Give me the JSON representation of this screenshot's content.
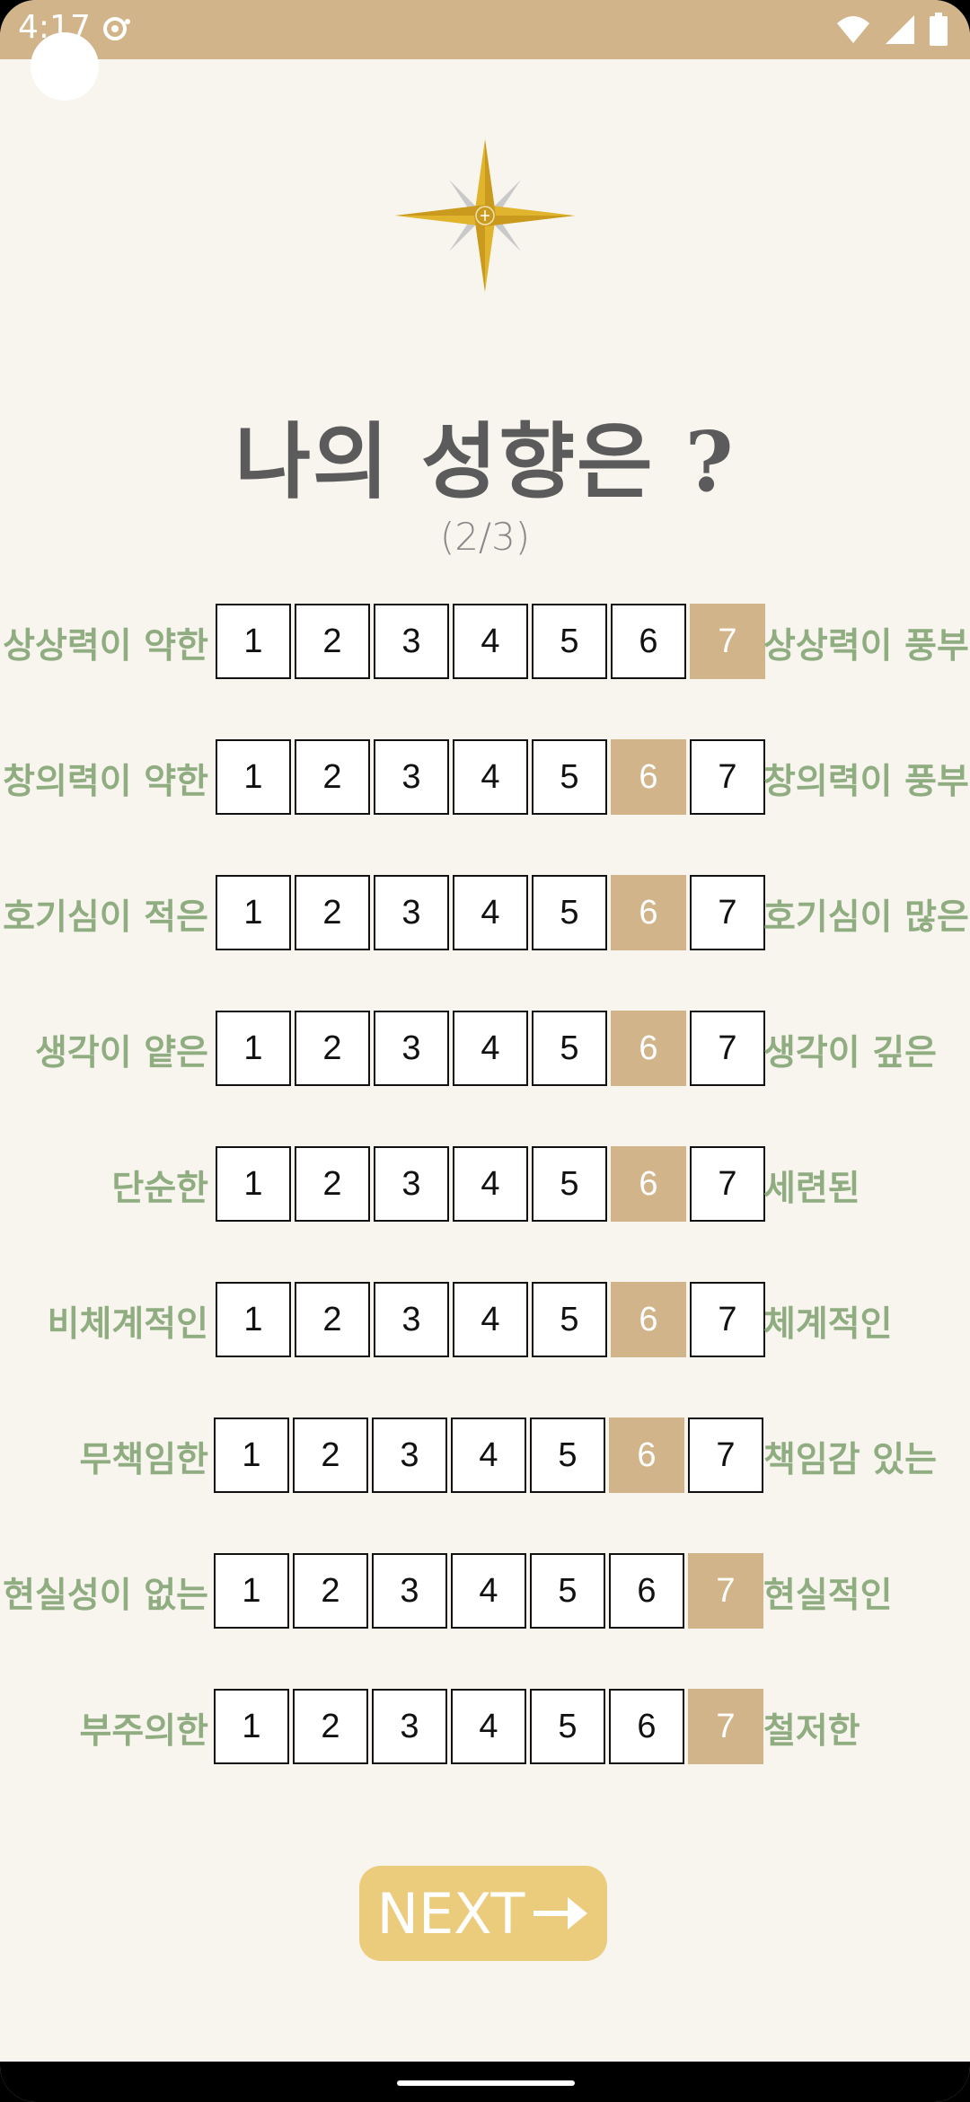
{
  "status_bar": {
    "time": "4:17",
    "color": "#d2b48a",
    "icons": [
      "notification-icon",
      "wifi-icon",
      "signal-icon",
      "battery-icon"
    ]
  },
  "header": {
    "logo_icon": "compass-star-icon",
    "title": "나의 성향은 ?",
    "step": "(2/3)"
  },
  "scale_values": [
    "1",
    "2",
    "3",
    "4",
    "5",
    "6",
    "7"
  ],
  "questions": [
    {
      "left": "상상력이 약한",
      "right": "상상력이 풍부한",
      "selected": 7
    },
    {
      "left": "창의력이 약한",
      "right": "창의력이 풍부한",
      "selected": 6
    },
    {
      "left": "호기심이 적은",
      "right": "호기심이 많은",
      "selected": 6
    },
    {
      "left": "생각이 얕은",
      "right": "생각이 깊은",
      "selected": 6
    },
    {
      "left": "단순한",
      "right": "세련된",
      "selected": 6
    },
    {
      "left": "비체계적인",
      "right": "체계적인",
      "selected": 6
    },
    {
      "left": "무책임한",
      "right": "책임감 있는",
      "selected": 6
    },
    {
      "left": "현실성이 없는",
      "right": "현실적인",
      "selected": 7
    },
    {
      "left": "부주의한",
      "right": "철저한",
      "selected": 7
    }
  ],
  "next_button": {
    "label": "NEXT",
    "icon": "arrow-right-icon"
  },
  "colors": {
    "accent": "#d2b48a",
    "label": "#8fad80",
    "button": "#ebcb7c",
    "title": "#5b5b5b",
    "background": "#f8f5ef"
  }
}
